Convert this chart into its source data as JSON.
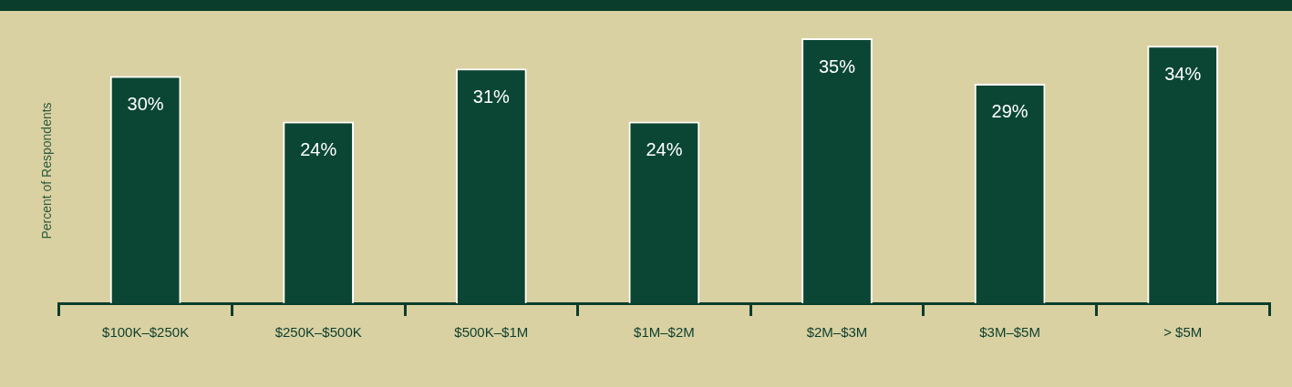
{
  "chart_data": {
    "type": "bar",
    "ylabel": "Percent of Respondents",
    "categories": [
      "$100K–$250K",
      "$250K–$500K",
      "$500K–$1M",
      "$1M–$2M",
      "$2M–$3M",
      "$3M–$5M",
      "> $5M"
    ],
    "values": [
      30,
      24,
      31,
      24,
      35,
      29,
      34
    ],
    "color": "#0b4635",
    "value_labels": [
      "30%",
      "24%",
      "31%",
      "24%",
      "35%",
      "29%",
      "34%"
    ],
    "grid": false,
    "legend": false,
    "tick_labels": "x"
  }
}
